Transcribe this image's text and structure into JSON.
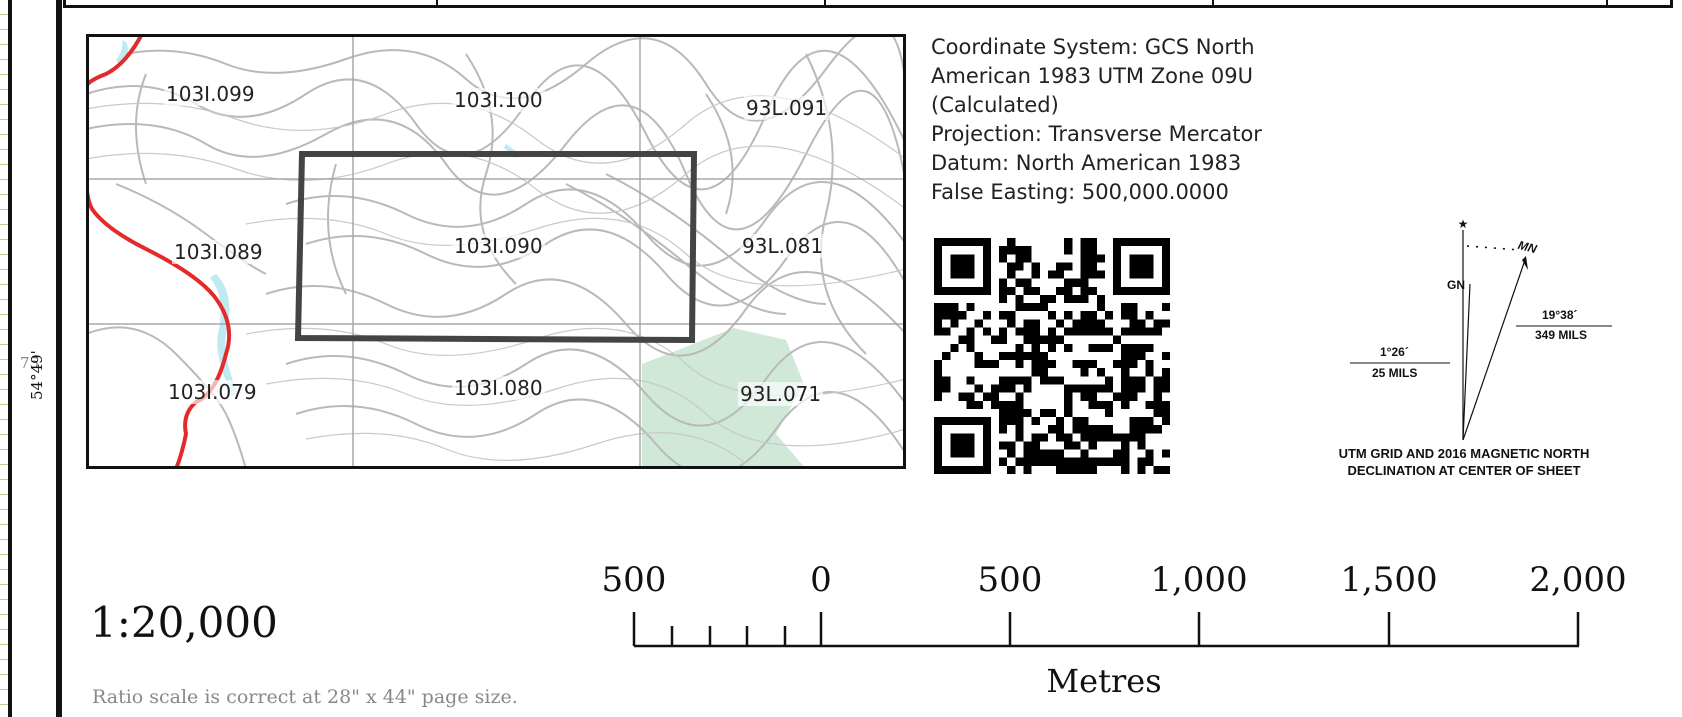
{
  "coordinate_info": {
    "lines": [
      "Coordinate System: GCS North",
      "American 1983 UTM Zone 09U",
      "(Calculated)",
      "Projection: Transverse Mercator",
      "Datum: North American 1983",
      "False Easting: 500,000.0000"
    ]
  },
  "index_map": {
    "tiles": [
      {
        "label": "103I.099"
      },
      {
        "label": "103I.100"
      },
      {
        "label": "93L.091"
      },
      {
        "label": "103I.089"
      },
      {
        "label": "103I.090"
      },
      {
        "label": "93L.081"
      },
      {
        "label": "103I.079"
      },
      {
        "label": "103I.080"
      },
      {
        "label": "93L.071"
      }
    ]
  },
  "left_margin": {
    "tick_label": "75",
    "latitude": "54°49'"
  },
  "declination": {
    "gn_label": "GN",
    "mn_label": "MN",
    "grid_angle": "1°26´",
    "grid_mils": "25 MILS",
    "magnetic_angle": "19°38´",
    "magnetic_mils": "349 MILS",
    "caption_line1": "UTM GRID AND 2016 MAGNETIC NORTH",
    "caption_line2": "DECLINATION AT CENTER OF SHEET"
  },
  "ratio_scale": {
    "value": "1:20,000",
    "note": "Ratio scale is correct at 28\" x 44\" page size."
  },
  "scale_bar": {
    "labels": [
      "500",
      "0",
      "500",
      "1,000",
      "1,500",
      "2,000"
    ],
    "units": "Metres"
  },
  "colors": {
    "road": "#e32b2b",
    "water": "#bfeaf2",
    "forest": "#cfe8d8",
    "contour": "#b9b9b9",
    "grid": "#a8a8a8",
    "frame": "#111111",
    "highlight_box": "#444444"
  },
  "icons": {
    "qr_code": "qr-code-icon",
    "north_star": "star-icon"
  }
}
